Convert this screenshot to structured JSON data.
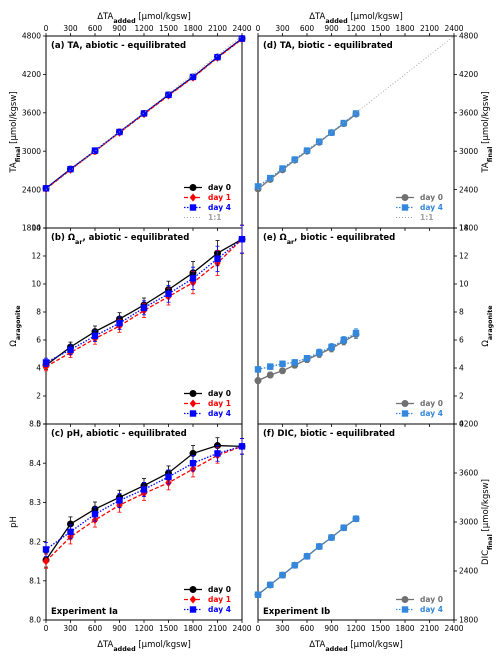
{
  "chart_data": [
    {
      "id": "a",
      "type": "line",
      "title": "(a) TA, abiotic - equilibrated",
      "x_range": [
        0,
        2400
      ],
      "y_range": [
        1800,
        4800
      ],
      "y_ticks": [
        1800,
        2400,
        3000,
        3600,
        4200,
        4800
      ],
      "y_label": "TA",
      "y_label_sub": "final",
      "y_label_unit": " [μmol/kgsw]",
      "y_side": "left",
      "top_axis": true,
      "bottom_ticks": false,
      "x_label_top": "ΔTA",
      "x_label_top_sub": "added",
      "x_label_top_unit": " [μmol/kgsw]",
      "legend": "bottom-right",
      "series": [
        {
          "name": "day 0",
          "color": "#000000",
          "marker": "circle",
          "dash": "",
          "x": [
            0,
            300,
            600,
            900,
            1200,
            1500,
            1800,
            2100,
            2400
          ],
          "y": [
            2420,
            2720,
            3000,
            3300,
            3590,
            3880,
            4160,
            4470,
            4760
          ],
          "err": [
            15,
            15,
            15,
            15,
            15,
            15,
            15,
            15,
            15
          ]
        },
        {
          "name": "day 1",
          "color": "#ff0000",
          "marker": "diamond",
          "dash": "4,2",
          "x": [
            0,
            300,
            600,
            900,
            1200,
            1500,
            1800,
            2100,
            2400
          ],
          "y": [
            2410,
            2710,
            3000,
            3290,
            3580,
            3870,
            4150,
            4460,
            4750
          ],
          "err": [
            15,
            15,
            15,
            15,
            15,
            15,
            15,
            15,
            15
          ]
        },
        {
          "name": "day 4",
          "color": "#0000ff",
          "marker": "square",
          "dash": "1.5,1.5",
          "x": [
            0,
            300,
            600,
            900,
            1200,
            1500,
            1800,
            2100,
            2400
          ],
          "y": [
            2420,
            2720,
            3010,
            3300,
            3590,
            3880,
            4160,
            4470,
            4760
          ],
          "err": [
            15,
            15,
            15,
            15,
            15,
            15,
            15,
            15,
            15
          ]
        },
        {
          "name": "1:1",
          "color": "#a0a0a0",
          "marker": "none",
          "dash": "1,2",
          "x": [
            0,
            2400
          ],
          "y": [
            2400,
            4800
          ],
          "err": []
        }
      ]
    },
    {
      "id": "d",
      "type": "line",
      "title": "(d) TA, biotic - equilibrated",
      "x_range": [
        0,
        2400
      ],
      "y_range": [
        1800,
        4800
      ],
      "y_ticks": [
        1800,
        2400,
        3000,
        3600,
        4200,
        4800
      ],
      "y_label": "TA",
      "y_label_sub": "final",
      "y_label_unit": " [μmol/kgsw]",
      "y_side": "right",
      "top_axis": true,
      "bottom_ticks": false,
      "x_label_top": "ΔTA",
      "x_label_top_sub": "added",
      "x_label_top_unit": " [μmol/kgsw]",
      "legend": "bottom-right",
      "series": [
        {
          "name": "day 0",
          "color": "#707070",
          "marker": "circle",
          "dash": "",
          "x": [
            0,
            150,
            300,
            450,
            600,
            750,
            900,
            1050,
            1200
          ],
          "y": [
            2410,
            2560,
            2710,
            2860,
            3000,
            3140,
            3290,
            3430,
            3580
          ],
          "err": [
            20,
            20,
            20,
            20,
            20,
            20,
            20,
            20,
            20
          ]
        },
        {
          "name": "day 4",
          "color": "#3388dd",
          "marker": "square",
          "dash": "1.5,1.5",
          "x": [
            0,
            150,
            300,
            450,
            600,
            750,
            900,
            1050,
            1200
          ],
          "y": [
            2450,
            2580,
            2730,
            2870,
            3010,
            3150,
            3290,
            3440,
            3590
          ],
          "err": [
            20,
            20,
            20,
            20,
            20,
            20,
            20,
            20,
            20
          ]
        },
        {
          "name": "1:1",
          "color": "#a0a0a0",
          "marker": "none",
          "dash": "1,2",
          "x": [
            0,
            2400
          ],
          "y": [
            2400,
            4800
          ],
          "err": []
        }
      ]
    },
    {
      "id": "b",
      "type": "line",
      "title": "(b) Ω",
      "title_sub": "ar",
      "title_rest": ", abiotic - equilibrated",
      "x_range": [
        0,
        2400
      ],
      "y_range": [
        0,
        14
      ],
      "y_ticks": [
        0,
        2,
        4,
        6,
        8,
        10,
        12,
        14
      ],
      "y_label": "Ω",
      "y_label_sub": "aragonite",
      "y_label_unit": "",
      "y_side": "left",
      "top_axis": false,
      "bottom_ticks": false,
      "legend": "bottom-right",
      "series": [
        {
          "name": "day 0",
          "color": "#000000",
          "marker": "circle",
          "dash": "",
          "x": [
            0,
            300,
            600,
            900,
            1200,
            1500,
            1800,
            2100,
            2400
          ],
          "y": [
            4.2,
            5.5,
            6.6,
            7.5,
            8.5,
            9.6,
            10.8,
            12.2,
            13.2
          ],
          "err": [
            0.3,
            0.35,
            0.4,
            0.45,
            0.5,
            0.6,
            0.8,
            0.9,
            1.0
          ]
        },
        {
          "name": "day 1",
          "color": "#ff0000",
          "marker": "diamond",
          "dash": "4,2",
          "x": [
            0,
            300,
            600,
            900,
            1200,
            1500,
            1800,
            2100,
            2400
          ],
          "y": [
            4.1,
            5.1,
            6.1,
            7.0,
            8.1,
            9.1,
            10.1,
            11.5,
            13.2
          ],
          "err": [
            0.3,
            0.35,
            0.4,
            0.45,
            0.5,
            0.6,
            0.8,
            0.9,
            1.0
          ]
        },
        {
          "name": "day 4",
          "color": "#0000ff",
          "marker": "square",
          "dash": "1.5,1.5",
          "x": [
            0,
            300,
            600,
            900,
            1200,
            1500,
            1800,
            2100,
            2400
          ],
          "y": [
            4.4,
            5.3,
            6.3,
            7.2,
            8.3,
            9.3,
            10.4,
            11.8,
            13.2
          ],
          "err": [
            0.3,
            0.35,
            0.4,
            0.45,
            0.5,
            0.6,
            0.8,
            0.9,
            1.0
          ]
        }
      ]
    },
    {
      "id": "e",
      "type": "line",
      "title": "(e) Ω",
      "title_sub": "ar",
      "title_rest": ", biotic - equilibrated",
      "x_range": [
        0,
        2400
      ],
      "y_range": [
        0,
        14
      ],
      "y_ticks": [
        0,
        2,
        4,
        6,
        8,
        10,
        12,
        14
      ],
      "y_label": "Ω",
      "y_label_sub": "aragonite",
      "y_label_unit": "",
      "y_side": "right",
      "top_axis": false,
      "bottom_ticks": false,
      "legend": "bottom-right",
      "series": [
        {
          "name": "day 0",
          "color": "#707070",
          "marker": "circle",
          "dash": "",
          "x": [
            0,
            150,
            300,
            450,
            600,
            750,
            900,
            1050,
            1200
          ],
          "y": [
            3.1,
            3.5,
            3.8,
            4.2,
            4.6,
            5.0,
            5.4,
            5.9,
            6.4
          ],
          "err": [
            0.2,
            0.2,
            0.2,
            0.2,
            0.2,
            0.25,
            0.25,
            0.25,
            0.3
          ]
        },
        {
          "name": "day 4",
          "color": "#3388dd",
          "marker": "square",
          "dash": "1.5,1.5",
          "x": [
            0,
            150,
            300,
            450,
            600,
            750,
            900,
            1050,
            1200
          ],
          "y": [
            3.9,
            4.1,
            4.3,
            4.4,
            4.7,
            5.1,
            5.5,
            6.0,
            6.5
          ],
          "err": [
            0.2,
            0.2,
            0.2,
            0.2,
            0.2,
            0.25,
            0.25,
            0.25,
            0.3
          ]
        }
      ]
    },
    {
      "id": "c",
      "type": "line",
      "title": "(c) pH, abiotic - equilibrated",
      "x_range": [
        0,
        2400
      ],
      "y_range": [
        8.0,
        8.5
      ],
      "y_ticks": [
        8.0,
        8.1,
        8.2,
        8.3,
        8.4,
        8.5
      ],
      "y_label": "pH",
      "y_label_sub": "",
      "y_label_unit": "",
      "y_side": "left",
      "top_axis": false,
      "bottom_ticks": true,
      "x_label": "ΔTA",
      "x_label_sub": "added",
      "x_label_unit": " [μmol/kgsw]",
      "legend": "bottom-right",
      "experiment_label": "Experiment Ia",
      "series": [
        {
          "name": "day 0",
          "color": "#000000",
          "marker": "circle",
          "dash": "",
          "x": [
            0,
            300,
            600,
            900,
            1200,
            1500,
            1800,
            2100,
            2400
          ],
          "y": [
            8.153,
            8.245,
            8.283,
            8.313,
            8.343,
            8.375,
            8.425,
            8.445,
            8.443
          ],
          "err": [
            0.018,
            0.018,
            0.018,
            0.018,
            0.018,
            0.018,
            0.02,
            0.02,
            0.02
          ]
        },
        {
          "name": "day 1",
          "color": "#ff0000",
          "marker": "diamond",
          "dash": "4,2",
          "x": [
            0,
            300,
            600,
            900,
            1200,
            1500,
            1800,
            2100,
            2400
          ],
          "y": [
            8.15,
            8.212,
            8.255,
            8.293,
            8.323,
            8.35,
            8.385,
            8.42,
            8.443
          ],
          "err": [
            0.018,
            0.018,
            0.018,
            0.018,
            0.018,
            0.018,
            0.02,
            0.02,
            0.02
          ]
        },
        {
          "name": "day 4",
          "color": "#0000ff",
          "marker": "square",
          "dash": "1.5,1.5",
          "x": [
            0,
            300,
            600,
            900,
            1200,
            1500,
            1800,
            2100,
            2400
          ],
          "y": [
            8.18,
            8.225,
            8.27,
            8.305,
            8.333,
            8.365,
            8.4,
            8.425,
            8.443
          ],
          "err": [
            0.018,
            0.018,
            0.018,
            0.018,
            0.018,
            0.018,
            0.02,
            0.02,
            0.02
          ]
        }
      ]
    },
    {
      "id": "f",
      "type": "line",
      "title": "(f) DIC, biotic - equilibrated",
      "x_range": [
        0,
        2400
      ],
      "y_range": [
        1800,
        4200
      ],
      "y_ticks": [
        1800,
        2400,
        3000,
        3600,
        4200
      ],
      "y_label": "DIC",
      "y_label_sub": "final",
      "y_label_unit": " [μmol/kgsw]",
      "y_side": "right",
      "top_axis": false,
      "bottom_ticks": true,
      "x_label": "ΔTA",
      "x_label_sub": "added",
      "x_label_unit": " [μmol/kgsw]",
      "legend": "bottom-right",
      "experiment_label": "Experiment Ib",
      "series": [
        {
          "name": "day 0",
          "color": "#707070",
          "marker": "circle",
          "dash": "",
          "x": [
            0,
            150,
            300,
            450,
            600,
            750,
            900,
            1050,
            1200
          ],
          "y": [
            2110,
            2230,
            2350,
            2470,
            2580,
            2700,
            2810,
            2930,
            3040
          ],
          "err": [
            10,
            10,
            10,
            10,
            10,
            10,
            10,
            10,
            10
          ]
        },
        {
          "name": "day 4",
          "color": "#3388dd",
          "marker": "square",
          "dash": "1.5,1.5",
          "x": [
            0,
            150,
            300,
            450,
            600,
            750,
            900,
            1050,
            1200
          ],
          "y": [
            2110,
            2230,
            2350,
            2470,
            2580,
            2700,
            2810,
            2930,
            3040
          ],
          "err": [
            10,
            10,
            10,
            10,
            10,
            10,
            10,
            10,
            10
          ]
        }
      ]
    }
  ],
  "x_ticks": [
    0,
    300,
    600,
    900,
    1200,
    1500,
    1800,
    2100,
    2400
  ]
}
